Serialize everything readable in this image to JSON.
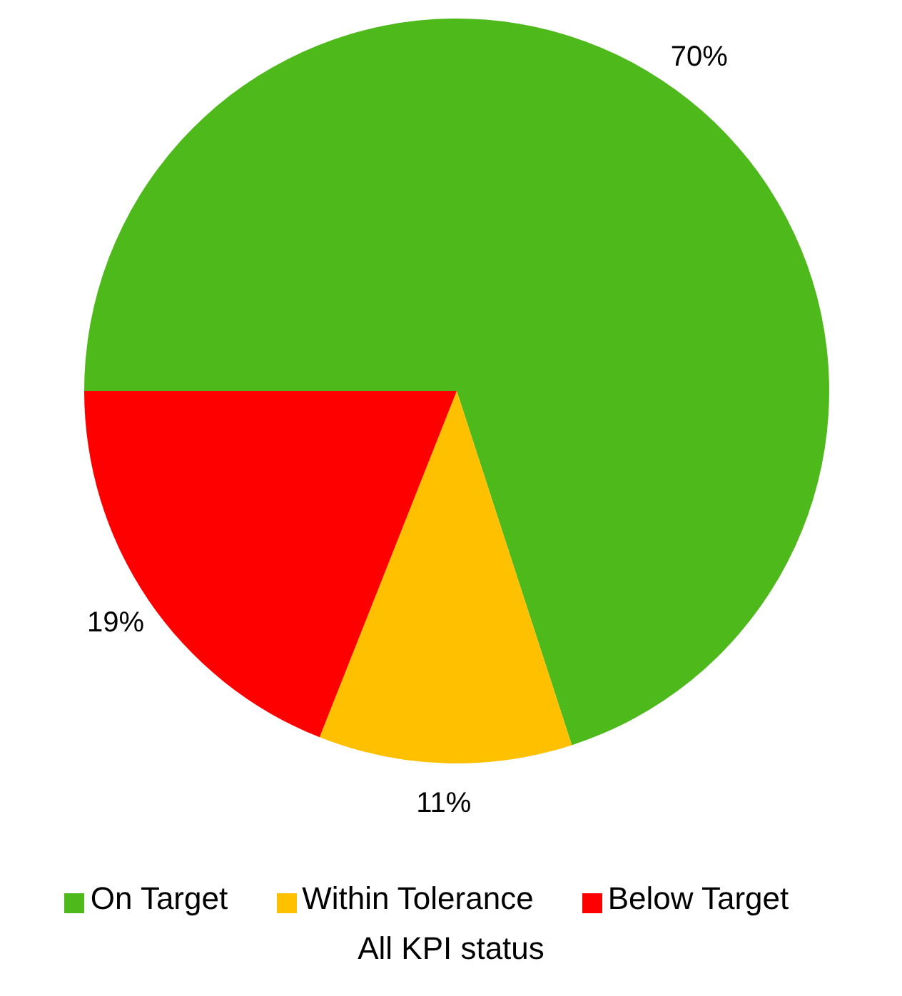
{
  "chart_data": {
    "type": "pie",
    "title": "All KPI status",
    "categories": [
      "On Target",
      "Within Tolerance",
      "Below Target"
    ],
    "values": [
      70,
      11,
      19
    ],
    "colors": [
      "#4eb91a",
      "#ffc000",
      "#ff0000"
    ],
    "value_labels": [
      "70%",
      "11%",
      "19%"
    ],
    "legend": "bottom"
  }
}
